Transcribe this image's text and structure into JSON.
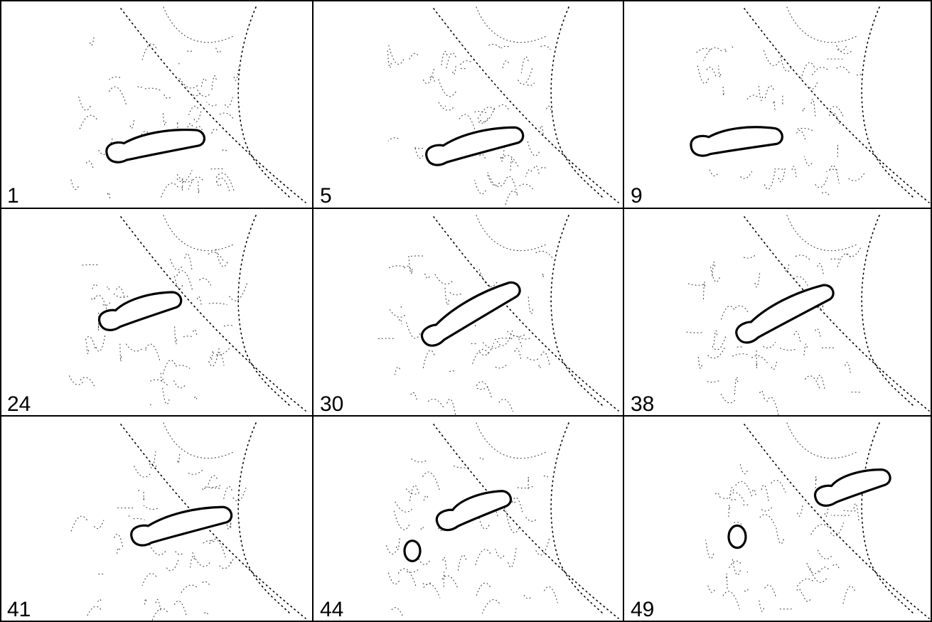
{
  "panels": [
    {
      "label": "1"
    },
    {
      "label": "5"
    },
    {
      "label": "9"
    },
    {
      "label": "24"
    },
    {
      "label": "30"
    },
    {
      "label": "38"
    },
    {
      "label": "41"
    },
    {
      "label": "44"
    },
    {
      "label": "49"
    }
  ]
}
